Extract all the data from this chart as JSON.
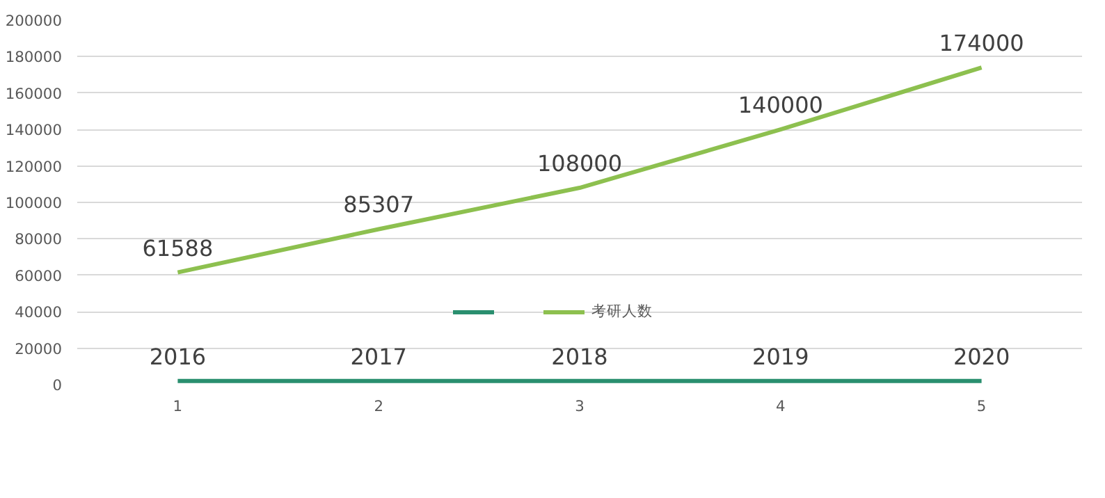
{
  "chart_data": {
    "type": "line",
    "categories": [
      "1",
      "2",
      "3",
      "4",
      "5"
    ],
    "series": [
      {
        "color": "#2a8f6f",
        "values": [
          2016,
          2017,
          2018,
          2019,
          2020
        ]
      },
      {
        "name": "考研人数",
        "color": "#8dc04f",
        "values": [
          61588,
          85307,
          108000,
          140000,
          174000
        ]
      }
    ],
    "ylim": [
      0,
      200000
    ],
    "yticks": [
      0,
      20000,
      40000,
      60000,
      80000,
      100000,
      120000,
      140000,
      160000,
      180000,
      200000
    ],
    "grid": "y",
    "legend": "bottom",
    "data_labels": true,
    "marker": "none",
    "line_style": "solid"
  }
}
